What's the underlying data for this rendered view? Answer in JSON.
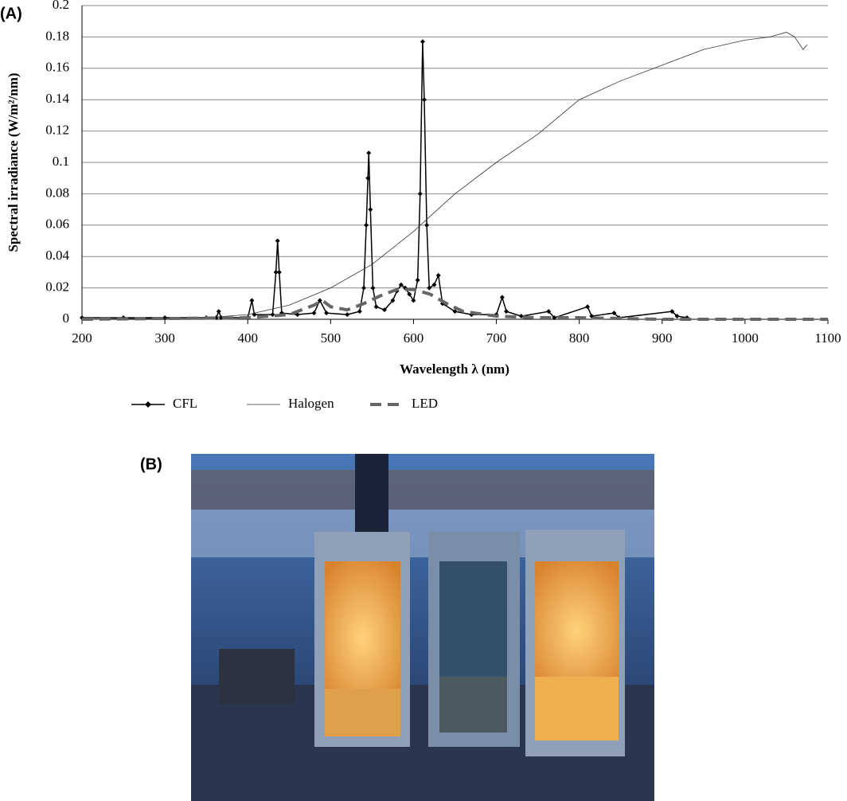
{
  "panel_a_label": "(A)",
  "panel_b_label": "(B)",
  "chart_data": {
    "type": "line",
    "ylabel": "Spectral irradiance (W/m²/nm)",
    "xlabel": "Wavelength λ (nm)",
    "xlim": [
      200,
      1100
    ],
    "xticks": [
      200,
      300,
      400,
      500,
      600,
      700,
      800,
      900,
      1000,
      1100
    ],
    "ylim": [
      0,
      0.2
    ],
    "yticks": [
      0,
      0.02,
      0.04,
      0.06,
      0.08,
      0.1,
      0.12,
      0.14,
      0.16,
      0.18,
      0.2
    ],
    "grid": true,
    "legend": "bottom",
    "series": [
      {
        "name": "CFL",
        "color": "#000000",
        "style": "line-diamond",
        "x": [
          200,
          250,
          300,
          350,
          362,
          365,
          368,
          400,
          405,
          408,
          430,
          434,
          436,
          438,
          441,
          460,
          480,
          487,
          495,
          520,
          535,
          540,
          543,
          545,
          546,
          548,
          551,
          555,
          565,
          575,
          580,
          585,
          590,
          595,
          600,
          605,
          608,
          611,
          613,
          616,
          619,
          625,
          630,
          635,
          650,
          670,
          700,
          707,
          712,
          730,
          763,
          770,
          810,
          815,
          842,
          848,
          912,
          918,
          930
        ],
        "values": [
          0.001,
          0.001,
          0.001,
          0.001,
          0.001,
          0.005,
          0.001,
          0.001,
          0.012,
          0.003,
          0.003,
          0.03,
          0.05,
          0.03,
          0.004,
          0.003,
          0.004,
          0.012,
          0.004,
          0.003,
          0.005,
          0.02,
          0.06,
          0.09,
          0.106,
          0.07,
          0.02,
          0.008,
          0.006,
          0.012,
          0.018,
          0.022,
          0.02,
          0.016,
          0.012,
          0.025,
          0.08,
          0.177,
          0.14,
          0.06,
          0.02,
          0.022,
          0.028,
          0.01,
          0.005,
          0.003,
          0.003,
          0.014,
          0.005,
          0.002,
          0.005,
          0.001,
          0.008,
          0.002,
          0.004,
          0.001,
          0.005,
          0.002,
          0.001
        ]
      },
      {
        "name": "Halogen",
        "color": "#333333",
        "style": "thin",
        "x": [
          200,
          350,
          400,
          450,
          500,
          550,
          600,
          650,
          700,
          750,
          800,
          850,
          900,
          950,
          1000,
          1030,
          1050,
          1060,
          1070,
          1075
        ],
        "values": [
          0,
          0.001,
          0.003,
          0.009,
          0.02,
          0.035,
          0.056,
          0.08,
          0.1,
          0.118,
          0.14,
          0.152,
          0.162,
          0.172,
          0.178,
          0.18,
          0.183,
          0.18,
          0.172,
          0.175
        ]
      },
      {
        "name": "LED",
        "color": "#666666",
        "style": "dashed",
        "x": [
          200,
          400,
          450,
          480,
          490,
          500,
          520,
          540,
          560,
          580,
          600,
          620,
          640,
          660,
          700,
          750,
          800,
          900,
          1000,
          1100
        ],
        "values": [
          0,
          0.001,
          0.003,
          0.009,
          0.012,
          0.008,
          0.006,
          0.01,
          0.015,
          0.019,
          0.019,
          0.016,
          0.01,
          0.005,
          0.002,
          0.001,
          0.001,
          0,
          0,
          0
        ]
      }
    ]
  }
}
